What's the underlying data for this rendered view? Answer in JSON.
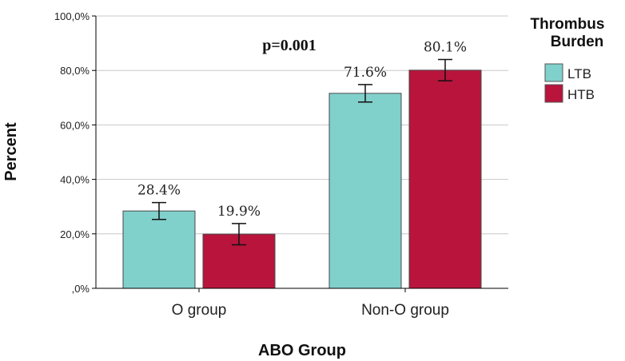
{
  "chart_data": {
    "type": "bar",
    "title": "",
    "xlabel": "ABO Group",
    "ylabel": "Percent",
    "ylim": [
      0,
      100
    ],
    "ytick_values": [
      0,
      20,
      40,
      60,
      80,
      100
    ],
    "ytick_labels": [
      ",0%",
      "20,0%",
      "40,0%",
      "60,0%",
      "80,0%",
      "100,0%"
    ],
    "categories": [
      "O group",
      "Non-O group"
    ],
    "series": [
      {
        "name": "LTB",
        "color": "#80d0cc",
        "values": [
          28.4,
          71.6
        ],
        "labels": [
          "28.4%",
          "71.6%"
        ],
        "err_low": [
          25.3,
          68.4
        ],
        "err_high": [
          31.5,
          74.8
        ]
      },
      {
        "name": "HTB",
        "color": "#b8143c",
        "values": [
          19.9,
          80.1
        ],
        "labels": [
          "19.9%",
          "80.1%"
        ],
        "err_low": [
          16.0,
          76.2
        ],
        "err_high": [
          23.8,
          84.0
        ]
      }
    ],
    "legend": {
      "title": "Thrombus Burden",
      "title_lines": [
        "Thrombus",
        "Burden"
      ],
      "position": "right"
    },
    "annotations": [
      {
        "text": "p=0.001"
      }
    ],
    "grid": true
  }
}
